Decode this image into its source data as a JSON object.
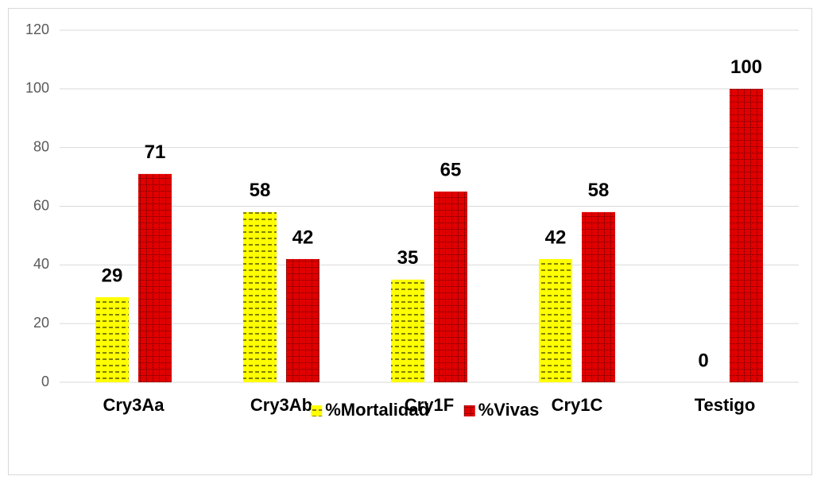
{
  "chart_data": {
    "type": "bar",
    "categories": [
      "Cry3Aa",
      "Cry3Ab",
      "Cry1F",
      "Cry1C",
      "Testigo"
    ],
    "series": [
      {
        "name": "%Mortalidad",
        "color": "#ffff00",
        "values": [
          29,
          58,
          35,
          42,
          0
        ]
      },
      {
        "name": "%Vivas",
        "color": "#e00000",
        "values": [
          71,
          42,
          65,
          58,
          100
        ]
      }
    ],
    "ylim": [
      0,
      120
    ],
    "yticks": [
      0,
      20,
      40,
      60,
      80,
      100,
      120
    ],
    "grid": true,
    "legend": "bottom"
  }
}
